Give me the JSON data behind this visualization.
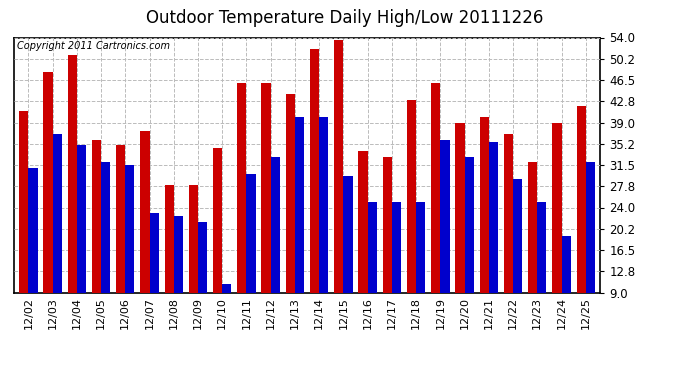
{
  "title": "Outdoor Temperature Daily High/Low 20111226",
  "copyright": "Copyright 2011 Cartronics.com",
  "dates": [
    "12/02",
    "12/03",
    "12/04",
    "12/05",
    "12/06",
    "12/07",
    "12/08",
    "12/09",
    "12/10",
    "12/11",
    "12/12",
    "12/13",
    "12/14",
    "12/15",
    "12/16",
    "12/17",
    "12/18",
    "12/19",
    "12/20",
    "12/21",
    "12/22",
    "12/23",
    "12/24",
    "12/25"
  ],
  "highs": [
    41.0,
    48.0,
    51.0,
    36.0,
    35.0,
    37.5,
    28.0,
    28.0,
    34.5,
    46.0,
    46.0,
    44.0,
    52.0,
    53.5,
    34.0,
    33.0,
    43.0,
    46.0,
    39.0,
    40.0,
    37.0,
    32.0,
    39.0,
    42.0
  ],
  "lows": [
    31.0,
    37.0,
    35.0,
    32.0,
    31.5,
    23.0,
    22.5,
    21.5,
    10.5,
    30.0,
    33.0,
    40.0,
    40.0,
    29.5,
    25.0,
    25.0,
    25.0,
    36.0,
    33.0,
    35.5,
    29.0,
    25.0,
    19.0,
    32.0
  ],
  "high_color": "#cc0000",
  "low_color": "#0000cc",
  "bg_color": "#ffffff",
  "grid_color": "#bbbbbb",
  "ymin": 9.0,
  "ymax": 54.0,
  "yticks": [
    9.0,
    12.8,
    16.5,
    20.2,
    24.0,
    27.8,
    31.5,
    35.2,
    39.0,
    42.8,
    46.5,
    50.2,
    54.0
  ],
  "title_fontsize": 12,
  "copyright_fontsize": 7,
  "tick_fontsize": 8.5
}
